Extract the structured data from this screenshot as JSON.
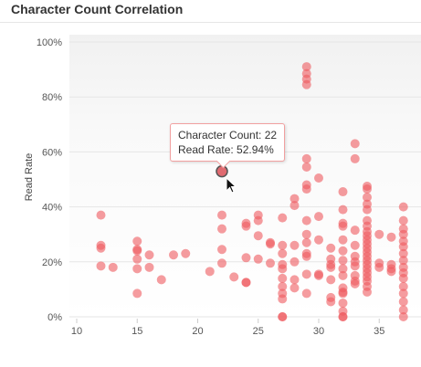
{
  "page": {
    "title": "Character Count Correlation"
  },
  "tooltip": {
    "line1_label": "Character Count: ",
    "line1_value": "22",
    "line2_label": "Read Rate: ",
    "line2_value": "52.94%"
  },
  "colors": {
    "point": "#ee5a5f",
    "highlight": "#e06a70",
    "plot_background_top": "#f3f3f3",
    "gridline": "#e6e6e6"
  },
  "chart_data": {
    "type": "scatter",
    "title": "Character Count Correlation",
    "xlabel": "",
    "ylabel": "Read Rate",
    "xlim": [
      10,
      38
    ],
    "ylim": [
      0,
      100
    ],
    "x_ticks": [
      10,
      15,
      20,
      25,
      30,
      35
    ],
    "x_tick_labels": [
      "10",
      "15",
      "20",
      "25",
      "30",
      "35"
    ],
    "y_ticks": [
      0,
      20,
      40,
      60,
      80,
      100
    ],
    "y_tick_labels": [
      "0%",
      "20%",
      "40%",
      "60%",
      "80%",
      "100%"
    ],
    "grid": "horizontal",
    "legend": "none",
    "highlighted_point": {
      "x": 22,
      "y": 52.94
    },
    "points": [
      [
        12,
        37
      ],
      [
        12,
        26
      ],
      [
        12,
        25
      ],
      [
        12,
        18.5
      ],
      [
        13,
        18
      ],
      [
        15,
        27.5
      ],
      [
        15,
        24.5
      ],
      [
        15,
        24
      ],
      [
        15,
        21
      ],
      [
        15,
        17.5
      ],
      [
        15,
        8.5
      ],
      [
        16,
        22.5
      ],
      [
        16,
        18
      ],
      [
        17,
        13.5
      ],
      [
        18,
        22.5
      ],
      [
        19,
        23
      ],
      [
        21,
        16.5
      ],
      [
        22,
        37
      ],
      [
        22,
        32
      ],
      [
        22,
        24.5
      ],
      [
        22,
        19.5
      ],
      [
        23,
        14.5
      ],
      [
        24,
        34
      ],
      [
        24,
        33
      ],
      [
        24,
        21.5
      ],
      [
        24,
        12.5
      ],
      [
        24,
        12.5
      ],
      [
        25,
        37
      ],
      [
        25,
        35
      ],
      [
        25,
        29.5
      ],
      [
        25,
        21
      ],
      [
        26,
        27
      ],
      [
        26,
        26.5
      ],
      [
        26,
        19.5
      ],
      [
        27,
        36
      ],
      [
        27,
        26
      ],
      [
        27,
        23
      ],
      [
        27,
        19
      ],
      [
        27,
        17.5
      ],
      [
        27,
        14
      ],
      [
        27,
        11
      ],
      [
        27,
        8.5
      ],
      [
        27,
        6.5
      ],
      [
        27,
        0
      ],
      [
        27,
        0
      ],
      [
        28,
        43
      ],
      [
        28,
        40.5
      ],
      [
        28,
        26
      ],
      [
        28,
        20
      ],
      [
        28,
        13.5
      ],
      [
        28,
        10.5
      ],
      [
        29,
        91
      ],
      [
        29,
        88.5
      ],
      [
        29,
        86.5
      ],
      [
        29,
        84.5
      ],
      [
        29,
        57.5
      ],
      [
        29,
        54.5
      ],
      [
        29,
        48
      ],
      [
        29,
        46.5
      ],
      [
        29,
        35
      ],
      [
        29,
        30
      ],
      [
        29,
        27
      ],
      [
        29,
        23
      ],
      [
        29,
        22
      ],
      [
        29,
        15.5
      ],
      [
        29,
        8.5
      ],
      [
        30,
        50.5
      ],
      [
        30,
        36.5
      ],
      [
        30,
        28
      ],
      [
        30,
        15.5
      ],
      [
        30,
        15
      ],
      [
        31,
        25
      ],
      [
        31,
        21
      ],
      [
        31,
        19
      ],
      [
        31,
        18
      ],
      [
        31,
        13.5
      ],
      [
        31,
        7
      ],
      [
        31,
        5.5
      ],
      [
        32,
        45.5
      ],
      [
        32,
        39
      ],
      [
        32,
        34
      ],
      [
        32,
        33
      ],
      [
        32,
        28
      ],
      [
        32,
        24
      ],
      [
        32,
        20.5
      ],
      [
        32,
        17.5
      ],
      [
        32,
        15
      ],
      [
        32,
        10.5
      ],
      [
        32,
        9
      ],
      [
        32,
        8.5
      ],
      [
        32,
        5
      ],
      [
        32,
        2
      ],
      [
        32,
        0
      ],
      [
        32,
        0
      ],
      [
        33,
        63
      ],
      [
        33,
        57.5
      ],
      [
        33,
        31.5
      ],
      [
        33,
        26
      ],
      [
        33,
        22
      ],
      [
        33,
        20
      ],
      [
        33,
        18.5
      ],
      [
        33,
        15
      ],
      [
        33,
        13
      ],
      [
        33,
        12
      ],
      [
        34,
        47.5
      ],
      [
        34,
        46.5
      ],
      [
        34,
        43.5
      ],
      [
        34,
        41
      ],
      [
        34,
        39
      ],
      [
        34,
        35
      ],
      [
        34,
        33
      ],
      [
        34,
        31
      ],
      [
        34,
        29.5
      ],
      [
        34,
        28
      ],
      [
        34,
        26.5
      ],
      [
        34,
        25
      ],
      [
        34,
        23.5
      ],
      [
        34,
        22
      ],
      [
        34,
        20.5
      ],
      [
        34,
        19
      ],
      [
        34,
        17.5
      ],
      [
        34,
        16
      ],
      [
        34,
        14.5
      ],
      [
        34,
        13
      ],
      [
        34,
        11
      ],
      [
        34,
        9
      ],
      [
        35,
        30
      ],
      [
        35,
        19.5
      ],
      [
        35,
        18
      ],
      [
        36,
        29
      ],
      [
        36,
        19
      ],
      [
        36,
        17.5
      ],
      [
        36,
        16.5
      ],
      [
        37,
        40
      ],
      [
        37,
        35
      ],
      [
        37,
        32
      ],
      [
        37,
        30
      ],
      [
        37,
        27.5
      ],
      [
        37,
        25.5
      ],
      [
        37,
        23
      ],
      [
        37,
        20.5
      ],
      [
        37,
        18
      ],
      [
        37,
        16
      ],
      [
        37,
        14
      ],
      [
        37,
        11
      ],
      [
        37,
        8.5
      ],
      [
        37,
        5.5
      ],
      [
        37,
        2.5
      ],
      [
        37,
        0
      ]
    ]
  }
}
